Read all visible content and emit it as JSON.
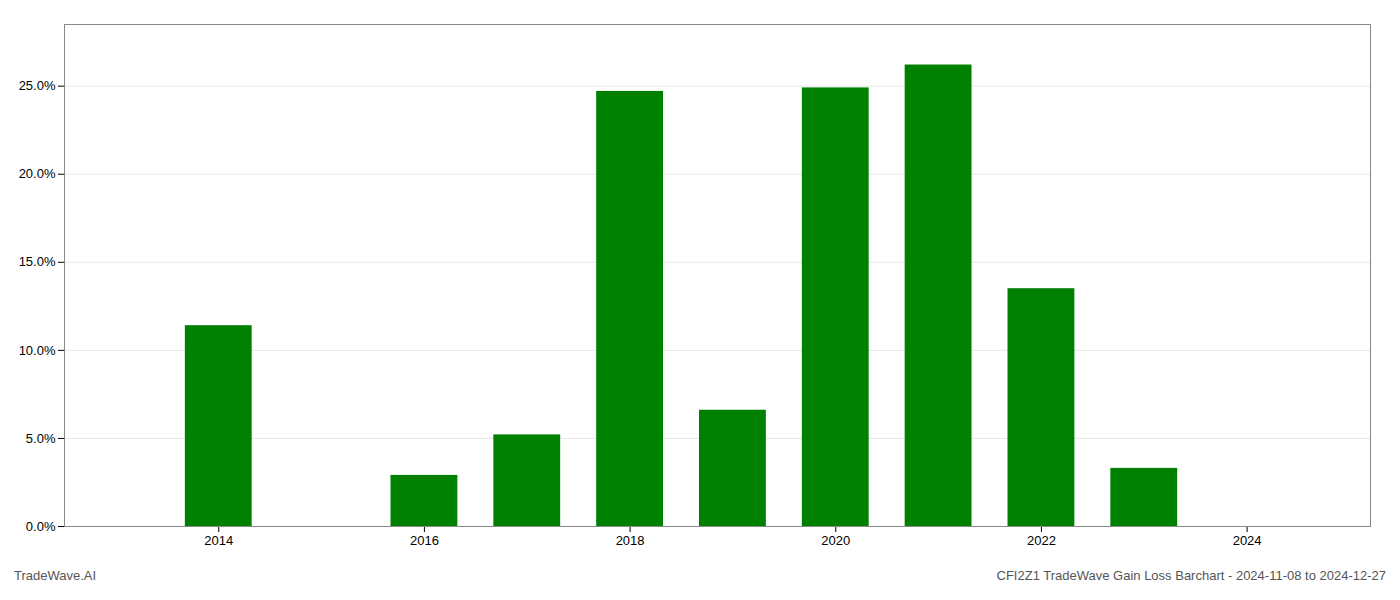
{
  "chart_data": {
    "type": "bar",
    "x": [
      2014,
      2015,
      2016,
      2017,
      2018,
      2019,
      2020,
      2021,
      2022,
      2023,
      2024
    ],
    "values": [
      0.114,
      null,
      0.029,
      0.052,
      0.247,
      0.066,
      0.249,
      0.262,
      0.135,
      0.033,
      null
    ],
    "color": "#008000",
    "xlim": [
      2012.5,
      2025.2
    ],
    "xticks": [
      2014,
      2016,
      2018,
      2020,
      2022,
      2024
    ],
    "ylim": [
      0,
      0.285
    ],
    "yticks": [
      {
        "value": 0.0,
        "label": "0.0%"
      },
      {
        "value": 0.05,
        "label": "5.0%"
      },
      {
        "value": 0.1,
        "label": "10.0%"
      },
      {
        "value": 0.15,
        "label": "15.0%"
      },
      {
        "value": 0.2,
        "label": "20.0%"
      },
      {
        "value": 0.25,
        "label": "25.0%"
      }
    ],
    "grid": true,
    "annotations": [
      "TradeWave.AI",
      "CFI2Z1 TradeWave Gain Loss Barchart - 2024-11-08 to 2024-12-27"
    ]
  }
}
